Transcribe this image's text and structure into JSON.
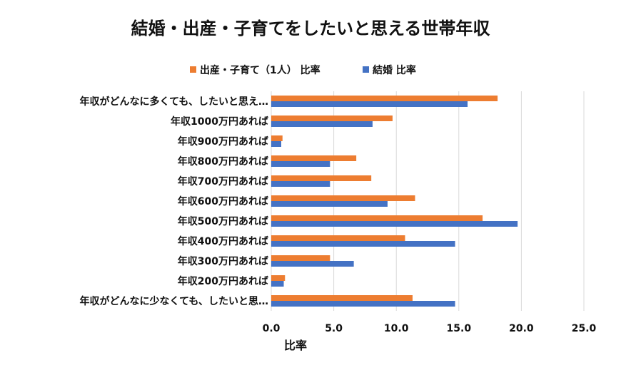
{
  "chart_data": {
    "type": "bar",
    "orientation": "horizontal",
    "title": "結婚・出産・子育てをしたいと思える世帯年収",
    "xlabel": "比率",
    "ylabel": "",
    "xlim": [
      0,
      25
    ],
    "xticks": [
      "0.0",
      "5.0",
      "10.0",
      "15.0",
      "20.0",
      "25.0"
    ],
    "xtick_values": [
      0,
      5,
      10,
      15,
      20,
      25
    ],
    "grid": true,
    "legend_position": "top",
    "categories": [
      "年収がどんなに多くても、したいと思え…",
      "年収1000万円あれば",
      "年収900万円あれば",
      "年収800万円あれば",
      "年収700万円あれば",
      "年収600万円あれば",
      "年収500万円あれば",
      "年収400万円あれば",
      "年収300万円あれば",
      "年収200万円あれば",
      "年収がどんなに少なくても、したいと思…"
    ],
    "series": [
      {
        "name": "出産・子育て（1人） 比率",
        "color": "#ed7d31",
        "values": [
          18.1,
          9.7,
          0.9,
          6.8,
          8.0,
          11.5,
          16.9,
          10.7,
          4.7,
          1.1,
          11.3
        ]
      },
      {
        "name": "結婚 比率",
        "color": "#4472c4",
        "values": [
          15.7,
          8.1,
          0.8,
          4.7,
          4.7,
          9.3,
          19.7,
          14.7,
          6.6,
          1.0,
          14.7
        ]
      }
    ]
  }
}
